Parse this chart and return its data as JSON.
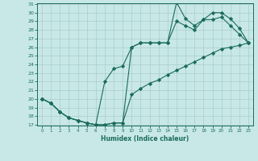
{
  "xlabel": "Humidex (Indice chaleur)",
  "x": [
    0,
    1,
    2,
    3,
    4,
    5,
    6,
    7,
    8,
    9,
    10,
    11,
    12,
    13,
    14,
    15,
    16,
    17,
    18,
    19,
    20,
    21,
    22,
    23
  ],
  "line1": [
    20.0,
    19.5,
    18.5,
    17.8,
    17.5,
    17.2,
    17.0,
    17.0,
    17.2,
    17.2,
    26.0,
    26.5,
    26.5,
    26.5,
    26.5,
    31.2,
    29.3,
    28.5,
    29.2,
    30.0,
    30.0,
    29.3,
    28.2,
    26.5
  ],
  "line2": [
    20.0,
    19.5,
    18.5,
    17.8,
    17.5,
    17.2,
    17.0,
    22.0,
    23.5,
    23.8,
    26.0,
    26.5,
    26.5,
    26.5,
    26.5,
    29.0,
    28.5,
    28.0,
    29.2,
    29.2,
    29.5,
    28.5,
    27.5,
    26.5
  ],
  "line3": [
    20.0,
    19.5,
    18.5,
    17.8,
    17.5,
    17.2,
    17.0,
    17.0,
    17.2,
    17.2,
    20.5,
    21.2,
    21.8,
    22.2,
    22.8,
    23.3,
    23.8,
    24.3,
    24.8,
    25.3,
    25.8,
    26.0,
    26.2,
    26.5
  ],
  "line_color": "#1a6b5a",
  "bg_color": "#c8e8e8",
  "grid_color": "#aacccc",
  "ylim": [
    17,
    31
  ],
  "xlim": [
    -0.5,
    23.5
  ],
  "yticks": [
    17,
    18,
    19,
    20,
    21,
    22,
    23,
    24,
    25,
    26,
    27,
    28,
    29,
    30,
    31
  ],
  "xticks": [
    0,
    1,
    2,
    3,
    4,
    5,
    6,
    7,
    8,
    9,
    10,
    11,
    12,
    13,
    14,
    15,
    16,
    17,
    18,
    19,
    20,
    21,
    22,
    23
  ],
  "marker": "D",
  "markersize": 2.2,
  "linewidth": 0.8
}
